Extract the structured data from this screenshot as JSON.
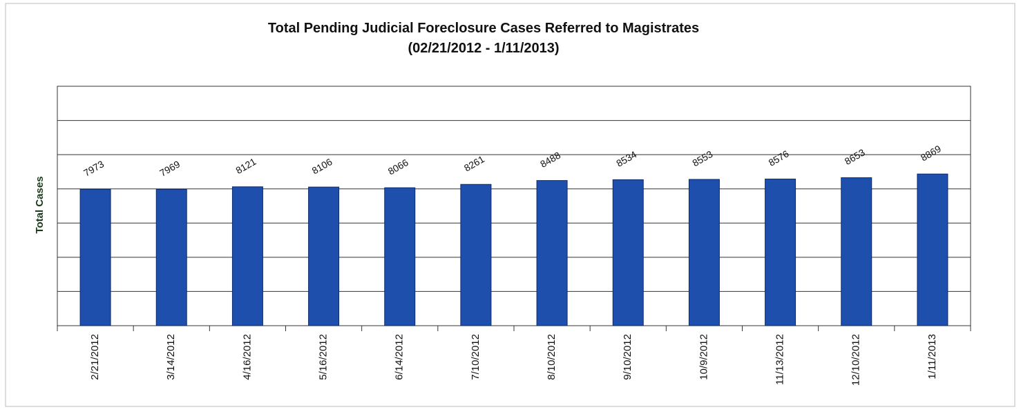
{
  "chart_data": {
    "type": "bar",
    "title": "Total Pending Judicial Foreclosure Cases Referred to Magistrates",
    "subtitle": "(02/21/2012 - 1/11/2013)",
    "y_label": "Total Cases",
    "categories": [
      "2/21/2012",
      "3/14/2012",
      "4/16/2012",
      "5/16/2012",
      "6/14/2012",
      "7/10/2012",
      "8/10/2012",
      "9/10/2012",
      "10/9/2012",
      "11/13/2012",
      "12/10/2012",
      "1/11/2013"
    ],
    "values": [
      7973,
      7969,
      8121,
      8106,
      8066,
      8261,
      8488,
      8534,
      8553,
      8576,
      8653,
      8869
    ],
    "color": "#1f4fad",
    "ylim": [
      0,
      14000
    ],
    "yticks": [
      0,
      2000,
      4000,
      6000,
      8000,
      10000,
      12000,
      14000
    ],
    "grid": true
  }
}
